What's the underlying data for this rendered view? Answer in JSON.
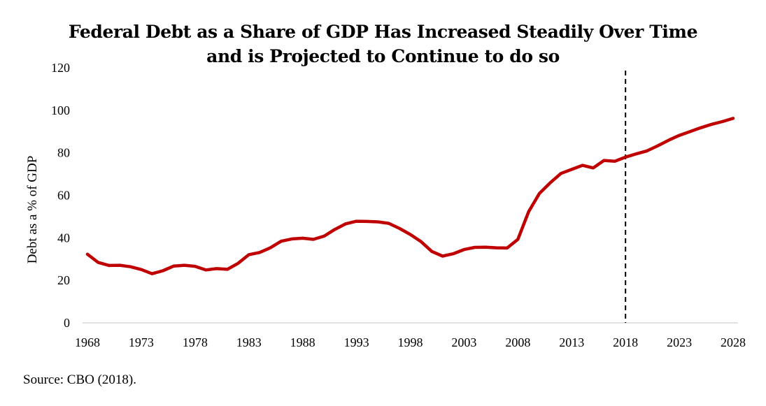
{
  "chart_data": {
    "type": "line",
    "title_lines": [
      "Federal Debt as a Share of GDP Has Increased Steadily Over Time",
      "and is Projected to Continue to do so"
    ],
    "xlabel": "",
    "ylabel": "Debt as a % of GDP",
    "ylim": [
      0,
      120
    ],
    "yticks": [
      0,
      20,
      40,
      60,
      80,
      100,
      120
    ],
    "xlim": [
      1968,
      2028
    ],
    "xticks": [
      1968,
      1973,
      1978,
      1983,
      1988,
      1993,
      1998,
      2003,
      2008,
      2013,
      2018,
      2023,
      2028
    ],
    "grid": false,
    "legend": "none",
    "vertical_marker": {
      "x": 2018,
      "style": "dashed",
      "color": "#000000"
    },
    "series": [
      {
        "color": "#C00000",
        "x": [
          1968,
          1969,
          1970,
          1971,
          1972,
          1973,
          1974,
          1975,
          1976,
          1977,
          1978,
          1979,
          1980,
          1981,
          1982,
          1983,
          1984,
          1985,
          1986,
          1987,
          1988,
          1989,
          1990,
          1991,
          1992,
          1993,
          1994,
          1995,
          1996,
          1997,
          1998,
          1999,
          2000,
          2001,
          2002,
          2003,
          2004,
          2005,
          2006,
          2007,
          2008,
          2009,
          2010,
          2011,
          2012,
          2013,
          2014,
          2015,
          2016,
          2017,
          2018,
          2019,
          2020,
          2021,
          2022,
          2023,
          2024,
          2025,
          2026,
          2027,
          2028
        ],
        "values": [
          32.3,
          28.4,
          27.0,
          27.1,
          26.4,
          25.1,
          23.1,
          24.5,
          26.7,
          27.1,
          26.6,
          24.9,
          25.5,
          25.2,
          28.0,
          32.1,
          33.1,
          35.3,
          38.4,
          39.5,
          39.8,
          39.3,
          40.8,
          44.0,
          46.6,
          47.8,
          47.7,
          47.5,
          46.8,
          44.4,
          41.6,
          38.2,
          33.6,
          31.4,
          32.5,
          34.5,
          35.5,
          35.6,
          35.3,
          35.2,
          39.3,
          52.3,
          60.9,
          65.9,
          70.3,
          72.2,
          74.1,
          72.9,
          76.4,
          76.0,
          78.0,
          79.5,
          80.9,
          83.3,
          85.9,
          88.2,
          90.0,
          91.8,
          93.4,
          94.7,
          96.2
        ]
      }
    ]
  },
  "footer": {
    "source": "Source: CBO (2018)."
  }
}
